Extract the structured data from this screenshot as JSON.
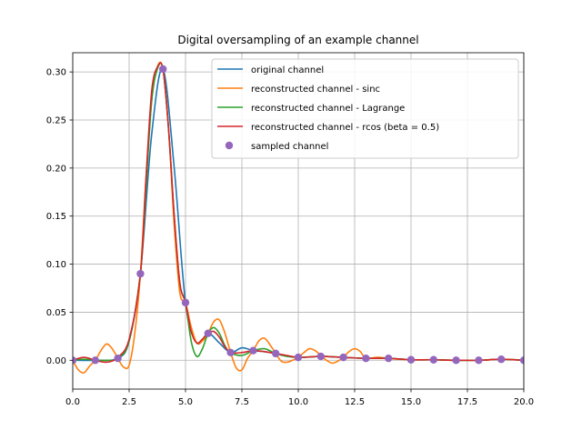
{
  "chart_data": {
    "type": "line",
    "title": "Digital oversampling of an example channel",
    "xlabel": "",
    "ylabel": "",
    "xlim": [
      0,
      20
    ],
    "ylim": [
      -0.03,
      0.32
    ],
    "grid": true,
    "legend_position": "top-right",
    "x_ticks": [
      0,
      2.5,
      5,
      7.5,
      10,
      12.5,
      15,
      17.5,
      20
    ],
    "x_tick_labels": [
      "0.0",
      "2.5",
      "5.0",
      "7.5",
      "10.0",
      "12.5",
      "15.0",
      "17.5",
      "20.0"
    ],
    "y_ticks": [
      0,
      0.05,
      0.1,
      0.15,
      0.2,
      0.25,
      0.3
    ],
    "y_tick_labels": [
      "0.00",
      "0.05",
      "0.10",
      "0.15",
      "0.20",
      "0.25",
      "0.30"
    ],
    "series": [
      {
        "name": "original channel",
        "color": "#1f77b4",
        "style": "line",
        "x": [
          0,
          1,
          2,
          2.5,
          3,
          3.5,
          4,
          4.5,
          5,
          5.5,
          6,
          6.5,
          7,
          7.5,
          8,
          8.5,
          9,
          10,
          11,
          12,
          13,
          14,
          15,
          16,
          17,
          18,
          19,
          20
        ],
        "y": [
          0,
          0,
          0.002,
          0.02,
          0.09,
          0.235,
          0.303,
          0.2,
          0.06,
          0.018,
          0.028,
          0.018,
          0.008,
          0.013,
          0.01,
          0.009,
          0.007,
          0.003,
          0.004,
          0.003,
          0.002,
          0.002,
          0.0005,
          0.0005,
          0,
          0,
          0.001,
          0
        ]
      },
      {
        "name": "reconstructed channel - sinc",
        "color": "#ff7f0e",
        "style": "line",
        "x": [
          0,
          0.25,
          0.5,
          0.75,
          1,
          1.25,
          1.5,
          1.75,
          2,
          2.25,
          2.5,
          2.75,
          3,
          3.25,
          3.5,
          3.75,
          4,
          4.25,
          4.5,
          4.75,
          5,
          5.25,
          5.5,
          5.75,
          6,
          6.25,
          6.5,
          6.75,
          7,
          7.25,
          7.5,
          7.75,
          8,
          8.25,
          8.5,
          8.75,
          9,
          9.25,
          9.5,
          9.75,
          10,
          10.25,
          10.5,
          10.75,
          11,
          11.25,
          11.5,
          11.75,
          12,
          12.25,
          12.5,
          12.75,
          13,
          13.5,
          14,
          14.5,
          15,
          16,
          17,
          18,
          19,
          20
        ],
        "y": [
          0,
          -0.01,
          -0.013,
          -0.006,
          0,
          0.01,
          0.017,
          0.012,
          0.002,
          -0.007,
          -0.005,
          0.028,
          0.09,
          0.19,
          0.27,
          0.305,
          0.303,
          0.24,
          0.14,
          0.07,
          0.06,
          0.035,
          0.018,
          0.02,
          0.028,
          0.04,
          0.042,
          0.028,
          0.008,
          -0.008,
          -0.01,
          0.002,
          0.01,
          0.02,
          0.023,
          0.016,
          0.007,
          -0.001,
          -0.002,
          0.0,
          0.003,
          0.008,
          0.012,
          0.01,
          0.005,
          0.0,
          -0.003,
          -0.001,
          0.003,
          0.009,
          0.012,
          0.009,
          0.002,
          0.003,
          0.002,
          0.001,
          0.0005,
          0.0005,
          0,
          0,
          0.001,
          0
        ]
      },
      {
        "name": "reconstructed channel - Lagrange",
        "color": "#2ca02c",
        "style": "line",
        "x": [
          0,
          0.5,
          1,
          1.5,
          2,
          2.5,
          3,
          3.25,
          3.5,
          3.75,
          4,
          4.25,
          4.5,
          4.75,
          5,
          5.25,
          5.5,
          5.75,
          6,
          6.25,
          6.5,
          6.75,
          7,
          7.5,
          8,
          8.5,
          9,
          9.5,
          10,
          11,
          12,
          13,
          14,
          15,
          16,
          17,
          18,
          19,
          20
        ],
        "y": [
          0,
          0.001,
          0,
          0.0,
          0.002,
          0.02,
          0.09,
          0.18,
          0.27,
          0.303,
          0.303,
          0.24,
          0.15,
          0.08,
          0.06,
          0.02,
          0.004,
          0.012,
          0.028,
          0.034,
          0.028,
          0.015,
          0.008,
          0.005,
          0.01,
          0.012,
          0.007,
          0.004,
          0.003,
          0.004,
          0.003,
          0.002,
          0.002,
          0.0005,
          0.0005,
          0,
          0,
          0.001,
          0
        ]
      },
      {
        "name": "reconstructed channel - rcos (beta = 0.5)",
        "color": "#d62728",
        "style": "line",
        "x": [
          0,
          0.5,
          1,
          1.5,
          2,
          2.5,
          3,
          3.25,
          3.5,
          3.75,
          4,
          4.25,
          4.5,
          4.75,
          5,
          5.25,
          5.5,
          5.75,
          6,
          6.25,
          6.5,
          6.75,
          7,
          7.5,
          8,
          8.5,
          9,
          9.5,
          10,
          11,
          12,
          13,
          14,
          15,
          16,
          17,
          18,
          19,
          20
        ],
        "y": [
          0,
          0.003,
          0,
          -0.002,
          0.003,
          0.022,
          0.09,
          0.19,
          0.28,
          0.305,
          0.303,
          0.24,
          0.15,
          0.08,
          0.06,
          0.03,
          0.018,
          0.022,
          0.028,
          0.03,
          0.024,
          0.014,
          0.008,
          0.008,
          0.01,
          0.009,
          0.007,
          0.005,
          0.003,
          0.004,
          0.003,
          0.002,
          0.002,
          0.0005,
          0.0005,
          0,
          0,
          0.001,
          0
        ]
      },
      {
        "name": "sampled channel",
        "color": "#9467bd",
        "style": "markers",
        "x": [
          0,
          1,
          2,
          3,
          4,
          5,
          6,
          7,
          8,
          9,
          10,
          11,
          12,
          13,
          14,
          15,
          16,
          17,
          18,
          19,
          20
        ],
        "y": [
          0.0,
          0.0,
          0.002,
          0.09,
          0.303,
          0.06,
          0.028,
          0.008,
          0.01,
          0.007,
          0.003,
          0.004,
          0.003,
          0.002,
          0.002,
          0.0005,
          0.0005,
          0.0,
          0.0,
          0.001,
          0.0
        ]
      }
    ]
  }
}
